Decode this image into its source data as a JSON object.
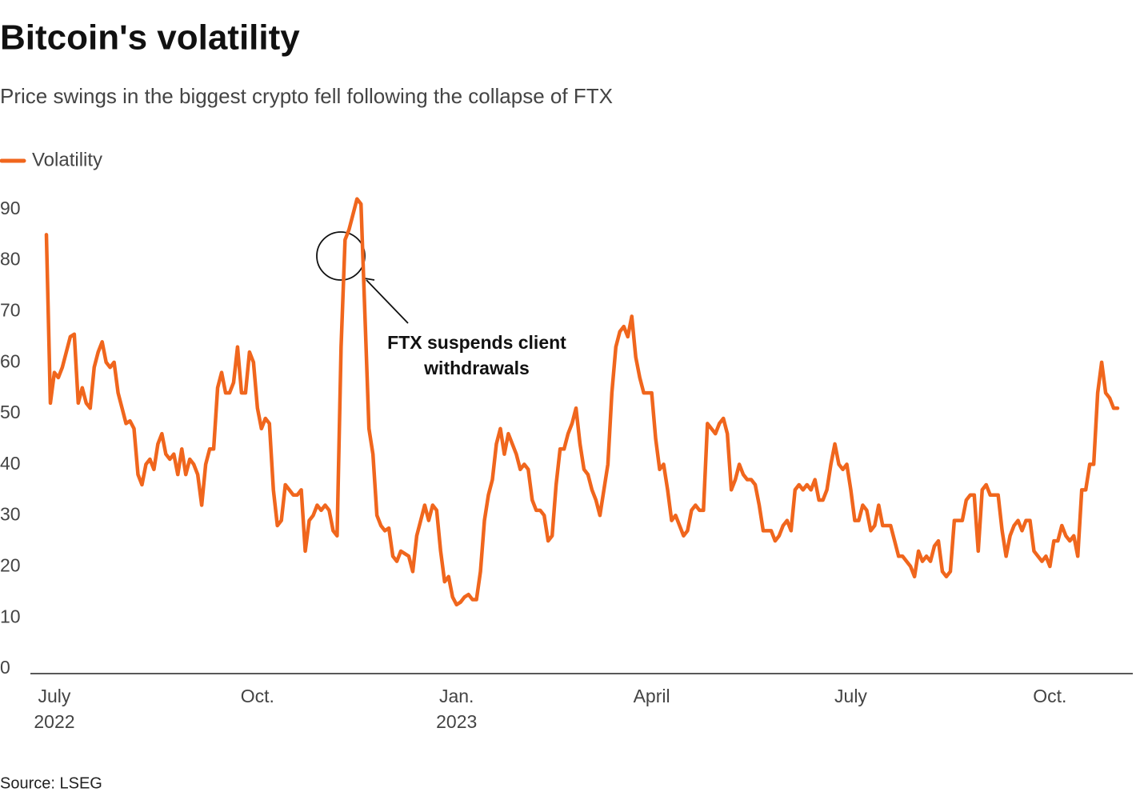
{
  "chart_data": {
    "type": "line",
    "title": "Bitcoin's volatility",
    "subtitle": "Price swings in the biggest crypto fell following the collapse of FTX",
    "source": "Source: LSEG",
    "annotation": "FTX suspends client\nwithdrawals",
    "legend": "top-left",
    "grid": false,
    "ylim": [
      0,
      100
    ],
    "yticks": [
      0,
      10,
      20,
      30,
      40,
      50,
      60,
      70,
      80,
      90
    ],
    "categories": [
      null,
      null,
      "July\n2022",
      null,
      null,
      null,
      null,
      null,
      null,
      null,
      null,
      null,
      null,
      null,
      null,
      null,
      null,
      null,
      null,
      null,
      null,
      null,
      null,
      null,
      null,
      null,
      null,
      null,
      null,
      null,
      null,
      null,
      null,
      null,
      null,
      null,
      null,
      null,
      null,
      null,
      null,
      null,
      null,
      null,
      null,
      null,
      null,
      null,
      null,
      null,
      null,
      null,
      null,
      "Oct.",
      null,
      null,
      null,
      null,
      null,
      null,
      null,
      null,
      null,
      null,
      null,
      null,
      null,
      null,
      null,
      null,
      null,
      null,
      null,
      null,
      null,
      null,
      null,
      null,
      null,
      null,
      null,
      null,
      null,
      null,
      null,
      null,
      null,
      null,
      null,
      null,
      null,
      null,
      null,
      null,
      null,
      null,
      null,
      null,
      null,
      null,
      null,
      null,
      null,
      "Jan.\n2023",
      null,
      null,
      null,
      null,
      null,
      null,
      null,
      null,
      null,
      null,
      null,
      null,
      null,
      null,
      null,
      null,
      null,
      null,
      null,
      null,
      null,
      null,
      null,
      null,
      null,
      null,
      null,
      null,
      null,
      null,
      null,
      null,
      null,
      null,
      null,
      null,
      null,
      null,
      null,
      null,
      null,
      null,
      null,
      null,
      null,
      null,
      null,
      null,
      "April",
      null,
      null,
      null,
      null,
      null,
      null,
      null,
      null,
      null,
      null,
      null,
      null,
      null,
      null,
      null,
      null,
      null,
      null,
      null,
      null,
      null,
      null,
      null,
      null,
      null,
      null,
      null,
      null,
      null,
      null,
      null,
      null,
      null,
      null,
      null,
      null,
      null,
      null,
      null,
      null,
      null,
      null,
      null,
      null,
      null,
      null,
      null,
      null,
      null,
      "July",
      null,
      null,
      null,
      null,
      null,
      null,
      null,
      null,
      null,
      null,
      null,
      null,
      null,
      null,
      null,
      null,
      null,
      null,
      null,
      null,
      null,
      null,
      null,
      null,
      null,
      null,
      null,
      null,
      null,
      null,
      null,
      null,
      null,
      null,
      null,
      null,
      null,
      null,
      null,
      null,
      null,
      null,
      null,
      null,
      null,
      null,
      null,
      null,
      null,
      "Oct.",
      null,
      null,
      null,
      null,
      null,
      null,
      null,
      null,
      null,
      null,
      null,
      null,
      null,
      null,
      null,
      null,
      null
    ],
    "series": [
      {
        "name": "Volatility",
        "color": "#f0661d",
        "values": [
          86,
          53,
          59,
          58,
          60,
          63,
          66,
          66.5,
          53,
          56,
          53,
          52,
          60,
          63,
          65,
          61,
          60,
          61,
          55,
          52,
          49,
          49.5,
          48,
          39,
          37,
          41,
          42,
          40,
          45,
          47,
          43,
          42,
          43,
          39,
          44,
          39,
          42,
          41,
          39,
          33,
          41,
          44,
          44,
          56,
          59,
          55,
          55,
          57,
          64,
          55,
          55,
          63,
          61,
          52,
          48,
          50,
          49,
          36,
          29,
          30,
          37,
          36,
          35,
          35,
          36,
          24,
          30,
          31,
          33,
          32,
          33,
          32,
          28,
          27,
          64,
          85,
          87,
          90,
          93,
          92,
          70,
          48,
          43,
          31,
          29,
          28,
          28.5,
          23,
          22,
          24,
          23.5,
          23,
          20,
          27,
          30,
          33,
          30,
          33,
          32,
          24,
          18,
          19,
          15,
          13.5,
          14,
          15,
          15.5,
          14.5,
          14.5,
          20,
          30,
          35,
          38,
          45,
          48,
          43,
          47,
          45,
          43,
          40,
          41,
          40,
          34,
          32,
          32,
          31,
          26,
          27,
          37,
          44,
          44,
          47,
          49,
          52,
          45,
          40,
          39,
          36,
          34,
          31,
          36,
          41,
          55,
          64,
          67,
          68,
          66,
          70,
          62,
          58,
          55,
          55,
          55,
          46,
          40,
          41,
          36,
          30,
          31,
          29,
          27,
          28,
          32,
          33,
          32,
          32,
          49,
          48,
          47,
          49,
          50,
          47,
          36,
          38,
          41,
          39,
          38,
          38,
          37,
          33,
          28,
          28,
          28,
          26,
          27,
          29,
          30,
          28,
          36,
          37,
          36,
          37,
          36,
          38,
          34,
          34,
          36,
          41,
          45,
          41,
          40,
          41,
          36,
          30,
          30,
          33,
          32,
          28,
          29,
          33,
          29,
          29,
          29,
          26,
          23,
          23,
          22,
          21,
          19,
          24,
          22,
          23,
          22,
          25,
          26,
          20,
          19,
          20,
          30,
          30,
          30,
          34,
          35,
          35,
          24,
          36,
          37,
          35,
          35,
          35,
          28,
          23,
          27,
          29,
          30,
          28,
          30,
          30,
          24,
          23,
          22,
          23,
          21,
          26,
          26,
          29,
          27,
          26,
          27,
          23,
          36,
          36,
          41,
          41,
          55,
          61,
          55,
          54,
          52,
          52
        ]
      }
    ]
  }
}
